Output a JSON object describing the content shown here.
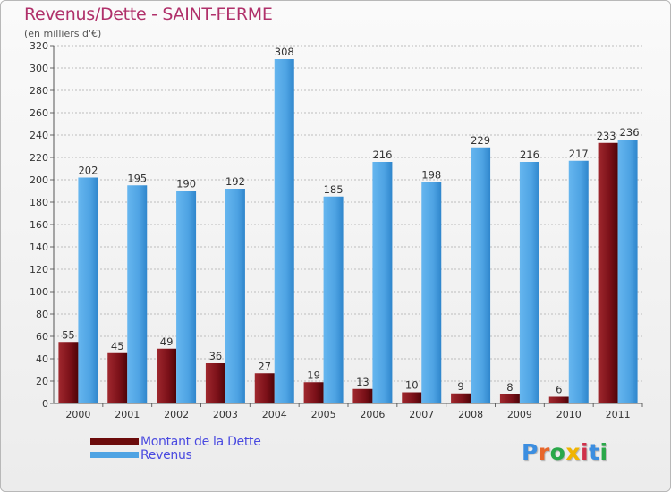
{
  "header": {
    "title": "Revenus/Dette - SAINT-FERME",
    "subtitle": "(en milliers d'€)"
  },
  "chart_data": {
    "type": "bar",
    "title": "Revenus/Dette - SAINT-FERME",
    "ylabel": "(en milliers d'€)",
    "xlabel": "",
    "categories": [
      "2000",
      "2001",
      "2002",
      "2003",
      "2004",
      "2005",
      "2006",
      "2007",
      "2008",
      "2009",
      "2010",
      "2011"
    ],
    "series": [
      {
        "name": "Montant de la Dette",
        "color": "#7a1018",
        "values": [
          55,
          45,
          49,
          36,
          27,
          19,
          13,
          10,
          9,
          8,
          6,
          233
        ]
      },
      {
        "name": "Revenus",
        "color": "#4ea3e3",
        "values": [
          202,
          195,
          190,
          192,
          308,
          185,
          216,
          198,
          229,
          216,
          217,
          236
        ]
      }
    ],
    "ylim": [
      0,
      320
    ],
    "yticks": [
      0,
      20,
      40,
      60,
      80,
      100,
      120,
      140,
      160,
      180,
      200,
      220,
      240,
      260,
      280,
      300,
      320
    ],
    "grid": true,
    "legend": "bottom-left"
  },
  "legend": {
    "items": [
      {
        "label": "Montant de la Dette",
        "color": "#6b0b0b"
      },
      {
        "label": "Revenus",
        "color": "#4ea3e3"
      }
    ]
  },
  "logo": {
    "letters": [
      "P",
      "r",
      "o",
      "x",
      "i",
      "t",
      "i"
    ],
    "colors": [
      "#3c8ee0",
      "#e8662a",
      "#2aa84a",
      "#f0b400",
      "#d0304a",
      "#3c8ee0",
      "#2aa84a"
    ]
  }
}
